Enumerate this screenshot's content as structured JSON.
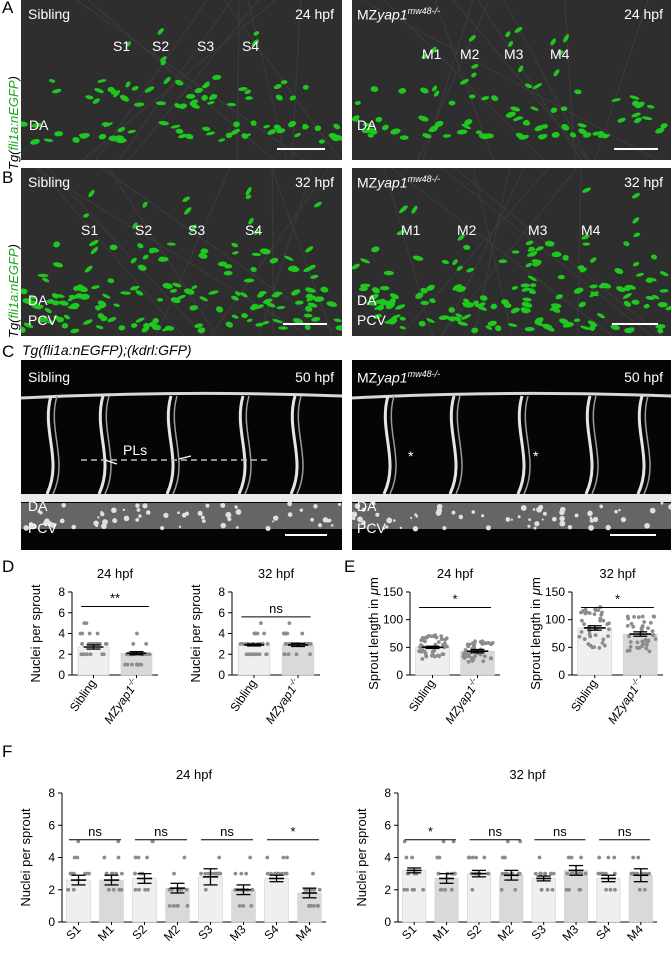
{
  "panels": {
    "A": {
      "label": "A",
      "row_label_pre": "Tg(",
      "row_label_green": "fli1a:nEGFP",
      "row_label_post": ")",
      "left": {
        "name": "Sibling",
        "time": "24 hpf",
        "sprouts": [
          "S1",
          "S2",
          "S3",
          "S4"
        ],
        "vessel": "DA"
      },
      "right": {
        "name_pre": "MZ",
        "name_gene": "yap1",
        "name_sup": "mw48-/-",
        "time": "24 hpf",
        "sprouts": [
          "M1",
          "M2",
          "M3",
          "M4"
        ],
        "vessel": "DA"
      }
    },
    "B": {
      "label": "B",
      "row_label_pre": "Tg(",
      "row_label_green": "fli1a:nEGFP",
      "row_label_post": ")",
      "left": {
        "name": "Sibling",
        "time": "32 hpf",
        "sprouts": [
          "S1",
          "S2",
          "S3",
          "S4"
        ],
        "vessels": [
          "DA",
          "PCV"
        ]
      },
      "right": {
        "name_pre": "MZ",
        "name_gene": "yap1",
        "name_sup": "mw48-/-",
        "time": "32 hpf",
        "sprouts": [
          "M1",
          "M2",
          "M3",
          "M4"
        ],
        "vessels": [
          "DA",
          "PCV"
        ]
      }
    },
    "C": {
      "label": "C",
      "title": "Tg(fli1a:nEGFP);(kdrl:GFP)",
      "left": {
        "name": "Sibling",
        "time": "50 hpf",
        "annotation": "PLs",
        "vessels": [
          "DA",
          "PCV"
        ]
      },
      "right": {
        "name_pre": "MZ",
        "name_gene": "yap1",
        "name_sup": "mw48-/-",
        "time": "50 hpf",
        "vessels": [
          "DA",
          "PCV"
        ],
        "asterisk": "*"
      }
    },
    "D": {
      "label": "D"
    },
    "E": {
      "label": "E"
    },
    "F": {
      "label": "F"
    }
  },
  "colors": {
    "sibling_bar": "#efefef",
    "mutant_bar": "#d9d9d9",
    "points": "#8c8c8c",
    "egfp": "#1ec81e"
  },
  "chart_data": [
    {
      "panel": "D",
      "type": "bar",
      "title": "24 hpf",
      "ylabel": "Nuclei per sprout",
      "categories": [
        "Sibling",
        "MZyap1-/-"
      ],
      "values": [
        2.7,
        2.1
      ],
      "sem": [
        0.2,
        0.15
      ],
      "ylim": [
        0,
        8
      ],
      "yticks": [
        0,
        2,
        4,
        6,
        8
      ],
      "significance": "**"
    },
    {
      "panel": "D",
      "type": "bar",
      "title": "32 hpf",
      "ylabel": "Nuclei per sprout",
      "categories": [
        "Sibling",
        "MZyap1-/-"
      ],
      "values": [
        2.9,
        2.9
      ],
      "sem": [
        0.1,
        0.15
      ],
      "ylim": [
        0,
        8
      ],
      "yticks": [
        0,
        2,
        4,
        6,
        8
      ],
      "significance": "ns"
    },
    {
      "panel": "E",
      "type": "bar",
      "title": "24 hpf",
      "ylabel": "Sprout length in μm",
      "categories": [
        "Sibling",
        "MZyap1-/-"
      ],
      "values": [
        50,
        43
      ],
      "sem": [
        2,
        3
      ],
      "ylim": [
        0,
        150
      ],
      "yticks": [
        0,
        50,
        100,
        150
      ],
      "significance": "*"
    },
    {
      "panel": "E",
      "type": "bar",
      "title": "32 hpf",
      "ylabel": "Sprout length in μm",
      "categories": [
        "Sibling",
        "MZyap1-/-"
      ],
      "values": [
        85,
        74
      ],
      "sem": [
        4,
        4
      ],
      "ylim": [
        0,
        150
      ],
      "yticks": [
        0,
        50,
        100,
        150
      ],
      "significance": "*"
    },
    {
      "panel": "F",
      "type": "bar",
      "title": "24 hpf",
      "ylabel": "Nuclei per sprout",
      "categories": [
        "S1",
        "M1",
        "S2",
        "M2",
        "S3",
        "M3",
        "S4",
        "M4"
      ],
      "values": [
        2.6,
        2.6,
        2.7,
        2.1,
        2.8,
        2.0,
        2.7,
        1.8
      ],
      "sem": [
        0.3,
        0.3,
        0.3,
        0.3,
        0.5,
        0.3,
        0.2,
        0.3
      ],
      "ylim": [
        0,
        8
      ],
      "yticks": [
        0,
        2,
        4,
        6,
        8
      ],
      "comparisons": [
        {
          "pair": [
            "S1",
            "M1"
          ],
          "label": "ns"
        },
        {
          "pair": [
            "S2",
            "M2"
          ],
          "label": "ns"
        },
        {
          "pair": [
            "S3",
            "M3"
          ],
          "label": "ns"
        },
        {
          "pair": [
            "S4",
            "M4"
          ],
          "label": "*"
        }
      ]
    },
    {
      "panel": "F",
      "type": "bar",
      "title": "32 hpf",
      "ylabel": "Nuclei per sprout",
      "categories": [
        "S1",
        "M1",
        "S2",
        "M2",
        "S3",
        "M3",
        "S4",
        "M4"
      ],
      "values": [
        3.2,
        2.7,
        3.0,
        2.9,
        2.7,
        3.2,
        2.7,
        2.9
      ],
      "sem": [
        0.15,
        0.3,
        0.2,
        0.3,
        0.15,
        0.3,
        0.2,
        0.4
      ],
      "ylim": [
        0,
        8
      ],
      "yticks": [
        0,
        2,
        4,
        6,
        8
      ],
      "comparisons": [
        {
          "pair": [
            "S1",
            "M1"
          ],
          "label": "*"
        },
        {
          "pair": [
            "S2",
            "M2"
          ],
          "label": "ns"
        },
        {
          "pair": [
            "S3",
            "M3"
          ],
          "label": "ns"
        },
        {
          "pair": [
            "S4",
            "M4"
          ],
          "label": "ns"
        }
      ]
    }
  ]
}
